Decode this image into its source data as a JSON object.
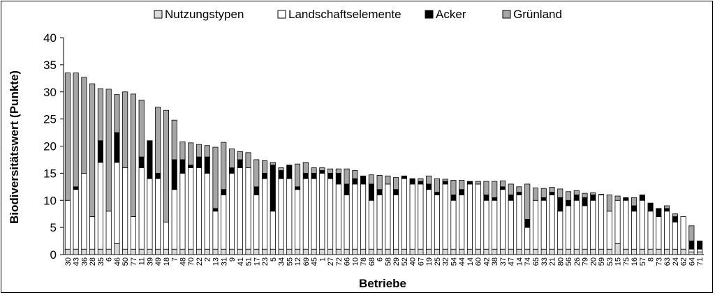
{
  "chart_data": {
    "type": "bar",
    "stacked": true,
    "title": "",
    "xlabel": "Betriebe",
    "ylabel": "Biodiversitätswert (Punkte)",
    "ylim": [
      0,
      40
    ],
    "yticks": [
      0,
      5,
      10,
      15,
      20,
      25,
      30,
      35,
      40
    ],
    "grid": false,
    "legend_position": "top",
    "categories": [
      "30",
      "43",
      "36",
      "28",
      "35",
      "6",
      "46",
      "50",
      "77",
      "11",
      "39",
      "49",
      "18",
      "7",
      "48",
      "70",
      "22",
      "2",
      "13",
      "31",
      "9",
      "41",
      "51",
      "17",
      "23",
      "5",
      "34",
      "55",
      "12",
      "69",
      "45",
      "1",
      "27",
      "72",
      "66",
      "10",
      "78",
      "68",
      "6",
      "58",
      "29",
      "52",
      "40",
      "67",
      "19",
      "25",
      "32",
      "54",
      "44",
      "14",
      "60",
      "42",
      "38",
      "37",
      "47",
      "14",
      "74",
      "65",
      "33",
      "21",
      "80",
      "56",
      "26",
      "79",
      "20",
      "59",
      "53",
      "15",
      "75",
      "16",
      "57",
      "8",
      "73",
      "63",
      "24",
      "62",
      "64",
      "71"
    ],
    "series": [
      {
        "name": "Nutzungstypen",
        "color": "#d9d9d9",
        "values": [
          1,
          1,
          1,
          1,
          1,
          1,
          2,
          1,
          1,
          1,
          1,
          1,
          1,
          1,
          1,
          1,
          1,
          1,
          1,
          1,
          1,
          1,
          1,
          1,
          1,
          1,
          1,
          1,
          1,
          1,
          1,
          1,
          1,
          1,
          1,
          1,
          1,
          1,
          1,
          1,
          1,
          1,
          1,
          1,
          1,
          1,
          1,
          1,
          1,
          1,
          1,
          1,
          1,
          1,
          1,
          1,
          1,
          1,
          1,
          1,
          1,
          1,
          1,
          1,
          1,
          1,
          1,
          2,
          1,
          1,
          1,
          1,
          1,
          1,
          1,
          1,
          0.5,
          0.5
        ]
      },
      {
        "name": "Landschaftselemente",
        "color": "#ffffff",
        "values": [
          9,
          11,
          14,
          6,
          16,
          7,
          15,
          15,
          6,
          15,
          13,
          13,
          5,
          11,
          14,
          15,
          15,
          14,
          7,
          10,
          14,
          15,
          15,
          10,
          13,
          7,
          13,
          13,
          11,
          13,
          13,
          14,
          13,
          12,
          10,
          12,
          12,
          9,
          10,
          12,
          10,
          13,
          12,
          12,
          11,
          10,
          12,
          9,
          10,
          12,
          12,
          9,
          9,
          11,
          9,
          10,
          4,
          9,
          9,
          10,
          7,
          8,
          9,
          8,
          9,
          10,
          7,
          8,
          9,
          7,
          9,
          7,
          6,
          7,
          5,
          6,
          0.5,
          0.5
        ]
      },
      {
        "name": "Acker",
        "color": "#000000",
        "values": [
          0,
          0.5,
          0,
          0,
          4,
          0,
          5.5,
          0,
          0,
          2,
          7,
          1,
          0,
          5.5,
          2.5,
          0.5,
          2,
          3,
          0.5,
          1,
          1,
          1.5,
          0,
          1.5,
          1,
          8.5,
          1.5,
          2.5,
          0.5,
          1,
          1,
          0.5,
          1,
          2,
          2,
          1,
          1.5,
          3,
          1,
          0,
          1,
          0.5,
          1,
          0.5,
          1,
          0.5,
          0.5,
          1,
          1,
          0.5,
          0,
          1,
          0.5,
          0.5,
          1,
          0.5,
          1.5,
          0,
          0.5,
          0.5,
          2.5,
          1,
          1,
          1.5,
          1,
          0,
          0,
          0,
          0.5,
          1,
          1,
          1.5,
          1.5,
          0.5,
          1,
          0,
          1.5,
          1.5
        ]
      },
      {
        "name": "Grünland",
        "color": "#a6a6a6",
        "values": [
          23.5,
          21,
          17.7,
          24.5,
          9.6,
          22.5,
          7,
          14,
          22.6,
          10.5,
          0,
          12.2,
          20.6,
          7.3,
          3.3,
          4.1,
          2.3,
          2.1,
          11.3,
          8.7,
          3.5,
          1.5,
          2.8,
          5,
          2.3,
          0.5,
          0.5,
          0,
          4.2,
          2,
          1,
          0.5,
          0.8,
          0.8,
          2.8,
          1.5,
          0,
          1.7,
          2.6,
          1.5,
          2.2,
          0,
          0,
          0.5,
          1.5,
          2.5,
          0.4,
          2.7,
          1.7,
          0,
          0.5,
          2.5,
          3,
          1.1,
          2,
          1,
          6.5,
          2.3,
          1.7,
          0.9,
          1.6,
          1.6,
          0.8,
          0.8,
          0.4,
          0.1,
          3,
          0.8,
          0,
          1.5,
          0,
          0,
          0,
          0.5,
          0.5,
          0,
          2.8,
          0
        ]
      }
    ]
  }
}
